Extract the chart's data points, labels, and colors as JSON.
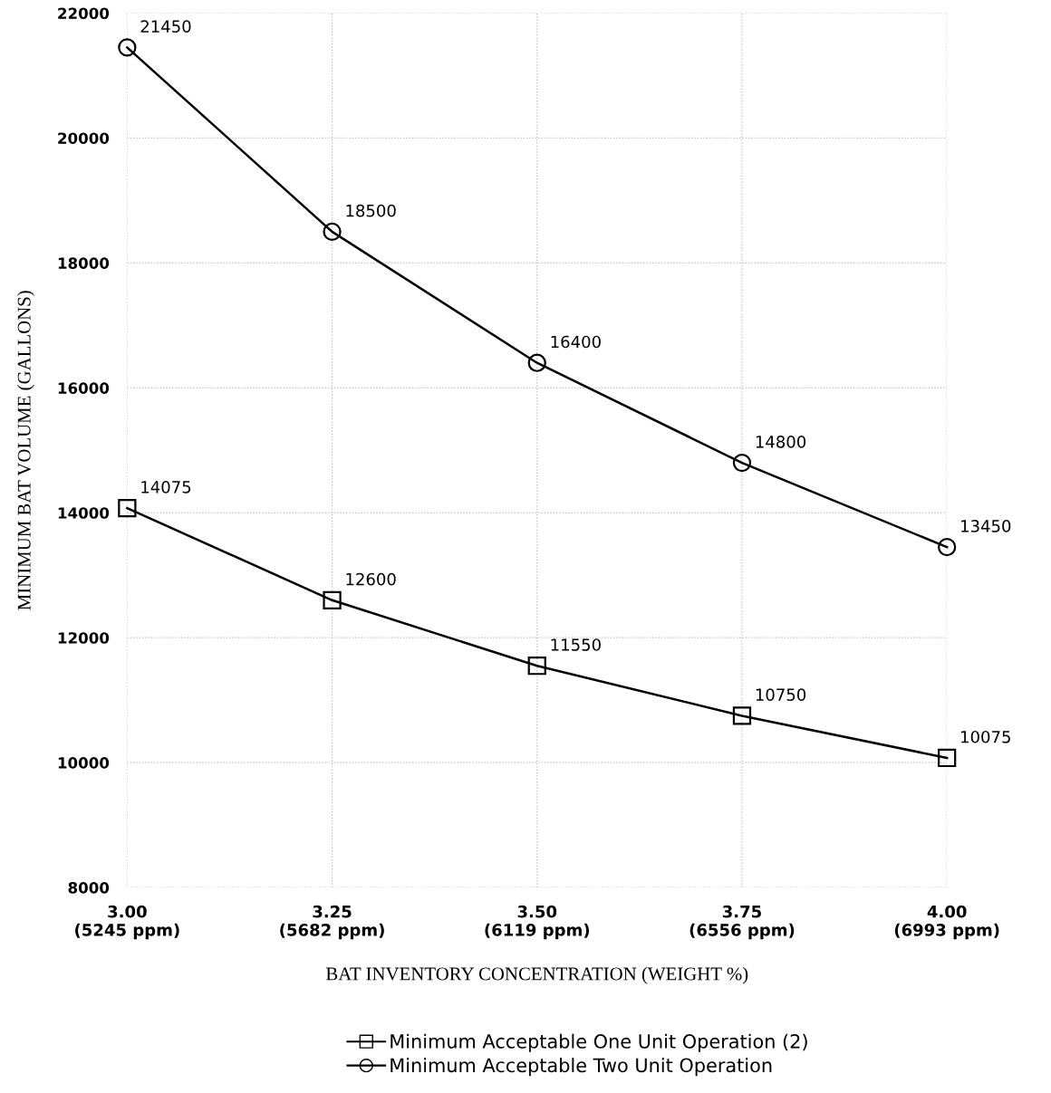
{
  "chart_data": {
    "type": "line",
    "xlabel": "BAT INVENTORY CONCENTRATION (WEIGHT %)",
    "ylabel": "MINIMUM BAT VOLUME (GALLONS)",
    "categories": [
      "3.00\n(5245 ppm)",
      "3.25\n(5682 ppm)",
      "3.50\n(6119 ppm)",
      "3.75\n(6556 ppm)",
      "4.00\n(6993 ppm)"
    ],
    "series": [
      {
        "name": "Minimum Acceptable One Unit Operation (2)",
        "color": "#000000",
        "marker": "square",
        "values": [
          14075,
          12600,
          11550,
          10750,
          10075
        ]
      },
      {
        "name": "Minimum Acceptable Two Unit Operation",
        "color": "#000000",
        "marker": "circle",
        "values": [
          21450,
          18500,
          16400,
          14800,
          13450
        ]
      }
    ],
    "ylim": [
      8000,
      22000
    ],
    "yticks": [
      8000,
      10000,
      12000,
      14000,
      16000,
      18000,
      20000,
      22000
    ],
    "grid": true,
    "legend": "bottom",
    "data_labels": true,
    "line_style": "solid"
  }
}
